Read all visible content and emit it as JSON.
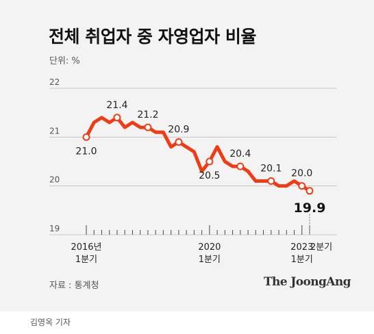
{
  "header": {
    "title": "전체 취업자 중 자영업자 비율",
    "unit": "단위: %"
  },
  "footer": {
    "source": "자료 : 통계청",
    "brand": "The JoongAng",
    "byline": "김영옥 기자"
  },
  "colors": {
    "line": "#f03c14",
    "marker_fill": "#ffffff",
    "grid": "#c9c9c9",
    "background": "#f3f3f3"
  },
  "chart_data": {
    "type": "line",
    "title": "전체 취업자 중 자영업자 비율",
    "ylabel": "단위: %",
    "ylim": [
      19,
      22
    ],
    "yticks": [
      19,
      20,
      21,
      22
    ],
    "grid": true,
    "x_axis_labels": [
      {
        "index": 0,
        "lines": [
          "2016년",
          "1분기"
        ]
      },
      {
        "index": 16,
        "lines": [
          "2020",
          "1분기"
        ]
      },
      {
        "index": 28,
        "lines": [
          "2023",
          "1분기"
        ]
      },
      {
        "index": 29,
        "lines": [
          "2분기"
        ]
      }
    ],
    "series": [
      {
        "values": [
          21.0,
          21.3,
          21.4,
          21.3,
          21.4,
          21.2,
          21.3,
          21.2,
          21.2,
          21.1,
          21.1,
          20.8,
          20.9,
          20.8,
          20.7,
          20.3,
          20.5,
          20.8,
          20.5,
          20.4,
          20.4,
          20.3,
          20.1,
          20.1,
          20.1,
          20.0,
          20.0,
          20.1,
          20.0,
          19.9
        ],
        "labeled_points": [
          {
            "index": 0,
            "label": "21.0",
            "pos": "below"
          },
          {
            "index": 4,
            "label": "21.4",
            "pos": "above"
          },
          {
            "index": 8,
            "label": "21.2",
            "pos": "above"
          },
          {
            "index": 12,
            "label": "20.9",
            "pos": "above"
          },
          {
            "index": 16,
            "label": "20.5",
            "pos": "below"
          },
          {
            "index": 20,
            "label": "20.4",
            "pos": "above"
          },
          {
            "index": 24,
            "label": "20.1",
            "pos": "above"
          },
          {
            "index": 28,
            "label": "20.0",
            "pos": "above"
          },
          {
            "index": 29,
            "label": "19.9",
            "pos": "below-last"
          }
        ]
      }
    ]
  }
}
